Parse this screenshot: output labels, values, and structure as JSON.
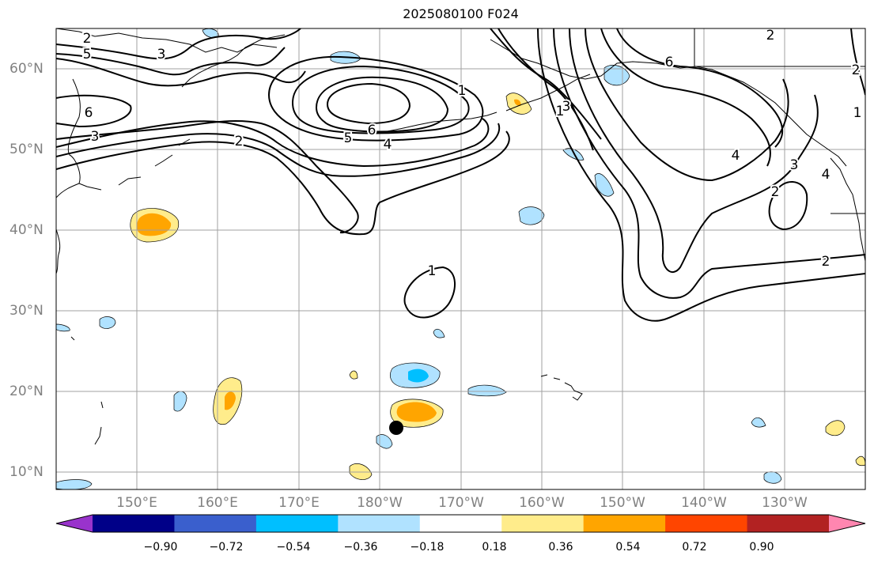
{
  "title": "2025080100 F024",
  "lat_labels": [
    "60°N",
    "50°N",
    "40°N",
    "30°N",
    "20°N",
    "10°N"
  ],
  "lon_labels": [
    "150°E",
    "160°E",
    "170°E",
    "180°W",
    "170°W",
    "160°W",
    "150°W",
    "140°W",
    "130°W"
  ],
  "contour_labels": [
    "2",
    "5",
    "3",
    "6",
    "3",
    "2",
    "6",
    "5",
    "4",
    "1",
    "1",
    "3",
    "6",
    "4",
    "2",
    "3",
    "2",
    "2",
    "1",
    "4",
    "1",
    "2"
  ],
  "colorbar": {
    "colors": [
      "#9933cc",
      "#000088",
      "#3a5fcd",
      "#00bfff",
      "#b0e2ff",
      "#ffffff",
      "#ffec8b",
      "#ffa500",
      "#ff4500",
      "#b22222",
      "#ff86b0"
    ],
    "tick_labels": [
      "−0.90",
      "−0.72",
      "−0.54",
      "−0.36",
      "−0.18",
      "0.18",
      "0.36",
      "0.54",
      "0.72",
      "0.90"
    ]
  },
  "colors": {
    "contour": "#000000",
    "grid": "#a0a0a0",
    "coast": "#000000",
    "marker": "#000000"
  }
}
